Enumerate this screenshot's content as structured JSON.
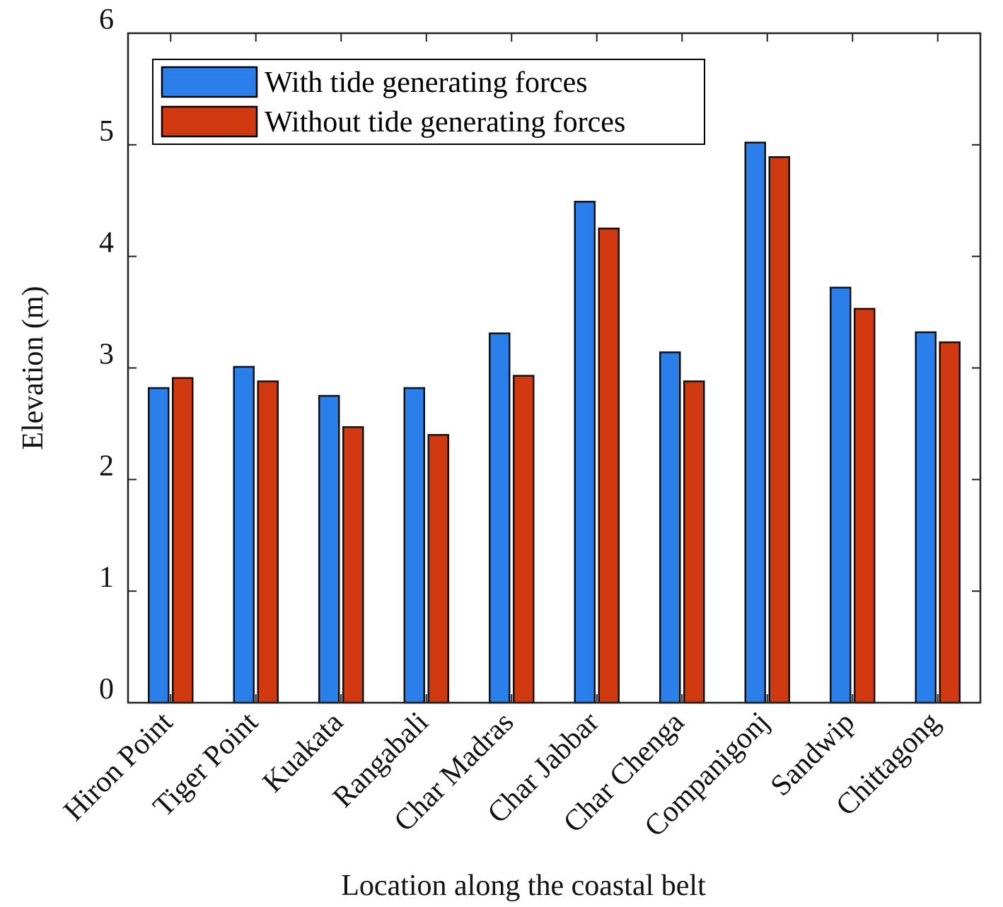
{
  "chart_data": {
    "type": "bar",
    "title": "",
    "xlabel": "Location along the coastal belt",
    "ylabel": "Elevation (m)",
    "ylim": [
      0,
      6
    ],
    "yticks": [
      "0",
      "1",
      "2",
      "3",
      "4",
      "5",
      "6"
    ],
    "categories": [
      "Hiron Point",
      "Tiger Point",
      "Kuakata",
      "Rangabali",
      "Char Madras",
      "Char Jabbar",
      "Char Chenga",
      "Companigonj",
      "Sandwip",
      "Chittagong"
    ],
    "series": [
      {
        "name": "With tide generating forces",
        "color": "#2b7fea",
        "values": [
          2.82,
          3.01,
          2.75,
          2.82,
          3.31,
          4.49,
          3.14,
          5.02,
          3.72,
          3.32
        ]
      },
      {
        "name": "Without tide generating forces",
        "color": "#d13a10",
        "values": [
          2.91,
          2.88,
          2.47,
          2.4,
          2.93,
          4.25,
          2.88,
          4.89,
          3.53,
          3.23
        ]
      }
    ],
    "legend_position": "top-left",
    "grid": false
  }
}
